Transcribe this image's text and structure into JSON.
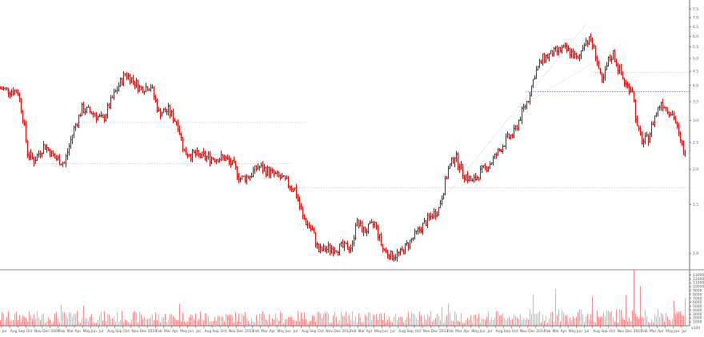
{
  "chart_data": {
    "type": "ohlc",
    "title": "",
    "xlabel": "",
    "ylabel": "",
    "price_axis": {
      "scale": "log",
      "ticks": [
        "7.5",
        "7.0",
        "6.5",
        "6.0",
        "5.5",
        "5.0",
        "4.5",
        "4.0",
        "3.5",
        "3.0",
        "2.5",
        "2.0",
        "1.5",
        "1.0"
      ],
      "tick_values": [
        7.5,
        7.0,
        6.5,
        6.0,
        5.5,
        5.0,
        4.5,
        4.0,
        3.5,
        3.0,
        2.5,
        2.0,
        1.5,
        1.0
      ],
      "ylim": [
        0.88,
        8.1
      ]
    },
    "volume_axis": {
      "ticks": [
        "13000",
        "12000",
        "11000",
        "10000",
        "9000",
        "8000",
        "7000",
        "6000",
        "5000",
        "4000",
        "3000",
        "2000",
        "1000"
      ],
      "tick_values": [
        13000,
        12000,
        11000,
        10000,
        9000,
        8000,
        7000,
        6000,
        5000,
        4000,
        3000,
        2000,
        1000
      ],
      "ylim": [
        0,
        13500
      ],
      "corner_label": "x100"
    },
    "time_axis": {
      "labels": [
        "Jul",
        "Aug",
        "Sep",
        "Oct",
        "Nov",
        "Dec",
        "2009",
        "Feb",
        "Mar",
        "Apr",
        "May",
        "Jun",
        "Jul",
        "Aug",
        "Sep",
        "Oct",
        "Nov",
        "Dec",
        "2010",
        "Feb",
        "Mar",
        "Apr",
        "May",
        "Jun",
        "Jul",
        "Aug",
        "Sep",
        "Oct",
        "Nov",
        "Dec",
        "2011",
        "Feb",
        "Mar",
        "Apr",
        "May",
        "Jun",
        "Jul",
        "Aug",
        "Sep",
        "Oct",
        "Nov",
        "Dec",
        "2012",
        "Feb",
        "Mar",
        "Apr",
        "May",
        "Jun",
        "Jul",
        "Aug",
        "Sep",
        "Oct",
        "Nov",
        "Dec",
        "2013",
        "Feb",
        "Mar",
        "Apr",
        "May",
        "Jun",
        "Jul",
        "Aug",
        "Sep",
        "Oct",
        "Nov",
        "Dec",
        "2014",
        "Feb",
        "Mar",
        "Apr",
        "May",
        "Jun",
        "Jul",
        "Aug",
        "Sep",
        "Oct",
        "Nov",
        "Dec",
        "2015",
        "Feb",
        "Mar",
        "Apr",
        "May",
        "Jun",
        "Jul"
      ]
    },
    "price_path": [
      [
        0,
        3.9
      ],
      [
        22,
        3.8
      ],
      [
        28,
        3.1
      ],
      [
        34,
        2.3
      ],
      [
        42,
        2.15
      ],
      [
        55,
        2.45
      ],
      [
        68,
        2.2
      ],
      [
        80,
        2.1
      ],
      [
        92,
        2.8
      ],
      [
        102,
        3.3
      ],
      [
        115,
        3.2
      ],
      [
        128,
        3.0
      ],
      [
        140,
        3.6
      ],
      [
        148,
        4.0
      ],
      [
        156,
        4.4
      ],
      [
        165,
        4.2
      ],
      [
        175,
        3.9
      ],
      [
        188,
        4.0
      ],
      [
        198,
        3.2
      ],
      [
        210,
        3.25
      ],
      [
        222,
        2.9
      ],
      [
        230,
        2.3
      ],
      [
        245,
        2.25
      ],
      [
        262,
        2.2
      ],
      [
        280,
        2.2
      ],
      [
        292,
        2.05
      ],
      [
        300,
        1.85
      ],
      [
        312,
        1.9
      ],
      [
        322,
        2.05
      ],
      [
        338,
        1.95
      ],
      [
        352,
        1.85
      ],
      [
        368,
        1.7
      ],
      [
        378,
        1.35
      ],
      [
        390,
        1.2
      ],
      [
        398,
        1.02
      ],
      [
        410,
        1.04
      ],
      [
        425,
        1.05
      ],
      [
        440,
        1.06
      ],
      [
        444,
        1.3
      ],
      [
        455,
        1.2
      ],
      [
        468,
        1.28
      ],
      [
        478,
        1.04
      ],
      [
        488,
        0.98
      ],
      [
        500,
        1.0
      ],
      [
        515,
        1.13
      ],
      [
        532,
        1.3
      ],
      [
        548,
        1.45
      ],
      [
        560,
        2.0
      ],
      [
        568,
        2.25
      ],
      [
        578,
        1.95
      ],
      [
        590,
        1.8
      ],
      [
        600,
        1.95
      ],
      [
        612,
        2.1
      ],
      [
        622,
        2.3
      ],
      [
        632,
        2.55
      ],
      [
        642,
        2.7
      ],
      [
        652,
        3.2
      ],
      [
        660,
        3.6
      ],
      [
        668,
        4.4
      ],
      [
        678,
        5.0
      ],
      [
        690,
        5.2
      ],
      [
        702,
        5.4
      ],
      [
        712,
        5.3
      ],
      [
        722,
        4.9
      ],
      [
        730,
        5.8
      ],
      [
        738,
        5.8
      ],
      [
        744,
        5.2
      ],
      [
        752,
        4.0
      ],
      [
        760,
        4.9
      ],
      [
        766,
        5.2
      ],
      [
        774,
        4.5
      ],
      [
        782,
        4.0
      ],
      [
        790,
        3.9
      ],
      [
        796,
        2.8
      ],
      [
        803,
        2.5
      ],
      [
        810,
        2.6
      ],
      [
        818,
        3.1
      ],
      [
        826,
        3.5
      ],
      [
        834,
        3.3
      ],
      [
        842,
        3.1
      ],
      [
        850,
        2.5
      ],
      [
        857,
        2.2
      ]
    ],
    "support_lines": [
      {
        "y": 2.95,
        "x_from": 96,
        "x_to": 383
      },
      {
        "y": 2.1,
        "x_from": 34,
        "x_to": 363
      },
      {
        "y": 1.72,
        "x_from": 368,
        "x_to": 862
      },
      {
        "y": 4.45,
        "x_from": 740,
        "x_to": 862
      },
      {
        "y": 3.8,
        "x_from": 660,
        "x_to": 862,
        "color": "#3a3ab0"
      }
    ],
    "trend_lines": [
      {
        "from": [
          498,
          1.0
        ],
        "to": [
          734,
          6.7
        ]
      },
      {
        "from": [
          650,
          3.35
        ],
        "to": [
          740,
          4.8
        ]
      }
    ],
    "volume": {
      "baseline": 2800,
      "spikes": [
        [
          76,
          5400
        ],
        [
          104,
          5200
        ],
        [
          224,
          5600
        ],
        [
          552,
          4800
        ],
        [
          560,
          5700
        ],
        [
          666,
          7000
        ],
        [
          694,
          8200
        ],
        [
          740,
          6500
        ],
        [
          782,
          6800
        ],
        [
          792,
          12600
        ],
        [
          800,
          8800
        ],
        [
          842,
          5600
        ],
        [
          856,
          6200
        ]
      ]
    },
    "colors": {
      "up": "#333333",
      "down": "#dd0000",
      "grid": "#bbbbbb",
      "axis": "#444444",
      "volume_up": "#bbbbbb",
      "volume_down": "#ee8888"
    }
  }
}
